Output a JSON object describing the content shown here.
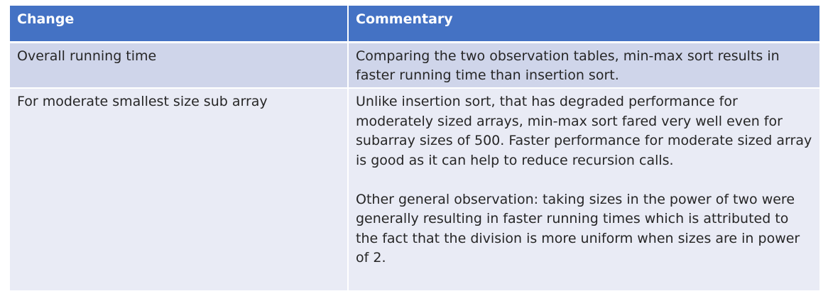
{
  "table": {
    "headers": [
      "Change",
      "Commentary"
    ],
    "rows": [
      {
        "change": "Overall running time",
        "commentary": [
          "Comparing the two observation tables, min-max sort results in faster running time than insertion sort."
        ]
      },
      {
        "change": "For moderate smallest size sub array",
        "commentary": [
          "Unlike insertion sort, that has degraded performance for moderately sized arrays, min-max sort fared very well even for subarray sizes of 500. Faster performance for moderate sized array is good as it can help to reduce recursion calls.",
          "Other general observation: taking sizes in the power of two were generally resulting in faster running times which is attributed to the fact that the division is more uniform when sizes are in power of 2."
        ]
      }
    ]
  },
  "colors": {
    "header_bg": "#4472c4",
    "row_odd_bg": "#cfd5ea",
    "row_even_bg": "#e9ebf5",
    "text": "#262626"
  }
}
